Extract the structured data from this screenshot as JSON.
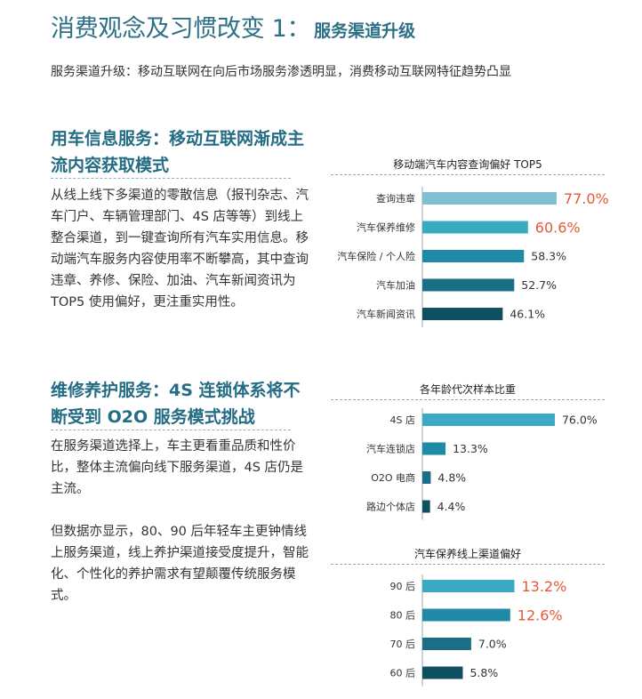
{
  "header": {
    "title": "消费观念及习惯改变 1：",
    "title_topic": "服务渠道升级",
    "subtitle": "服务渠道升级：移动互联网在向后市场服务渗透明显，消费移动互联网特征趋势凸显"
  },
  "section1": {
    "heading": "用车信息服务：移动互联网渐成主流内容获取模式",
    "paragraph": "从线上线下多渠道的零散信息（报刊杂志、汽车门户、车辆管理部门、4S 店等等）到线上整合渠道，到一键查询所有汽车实用信息。移动端汽车服务内容使用率不断攀高，其中查询违章、养修、保险、加油、汽车新闻资讯为 TOP5 使用偏好，更注重实用性。"
  },
  "section2": {
    "heading": "维修养护服务：4S 连锁体系将不断受到 O2O 服务模式挑战",
    "paragraph1": "在服务渠道选择上，车主更看重品质和性价比，整体主流偏向线下服务渠道，4S 店仍是主流。",
    "paragraph2": "但数据亦显示，80、90 后年轻车主更钟情线上服务渠道，线上养护渠道接受度提升，智能化、个性化的养护需求有望颠覆传统服务模式。"
  },
  "colors": {
    "title": "#2d6f86",
    "highlight": "#e8563a",
    "bar_palette": [
      "#7fbfcf",
      "#3aa9c2",
      "#1f8aa6",
      "#186f86",
      "#0e4f60"
    ]
  },
  "chart_data": [
    {
      "type": "bar",
      "orientation": "horizontal",
      "title": "移动端汽车内容查询偏好 TOP5",
      "categories": [
        "查询违章",
        "汽车保养维修",
        "汽车保险 / 个人险",
        "汽车加油",
        "汽车新闻资讯"
      ],
      "values": [
        77.0,
        60.6,
        58.3,
        52.7,
        46.1
      ],
      "value_labels": [
        "77.0%",
        "60.6%",
        "58.3%",
        "52.7%",
        "46.1%"
      ],
      "highlight_indices": [
        0,
        1
      ],
      "colors": [
        "#7fbfcf",
        "#3aa9c2",
        "#1f8aa6",
        "#186f86",
        "#0e4f60"
      ]
    },
    {
      "type": "bar",
      "orientation": "horizontal",
      "title": "各年龄代次样本比重",
      "categories": [
        "4S 店",
        "汽车连锁店",
        "O2O 电商",
        "路边个体店"
      ],
      "values": [
        76.0,
        13.3,
        4.8,
        4.4
      ],
      "value_labels": [
        "76.0%",
        "13.3%",
        "4.8%",
        "4.4%"
      ],
      "highlight_indices": [],
      "colors": [
        "#3aa9c2",
        "#1f8aa6",
        "#186f86",
        "#0e4f60"
      ]
    },
    {
      "type": "bar",
      "orientation": "horizontal",
      "title": "汽车保养线上渠道偏好",
      "categories": [
        "90 后",
        "80 后",
        "70 后",
        "60 后"
      ],
      "values": [
        13.2,
        12.6,
        7.0,
        5.8
      ],
      "value_labels": [
        "13.2%",
        "12.6%",
        "7.0%",
        "5.8%"
      ],
      "highlight_indices": [
        0,
        1
      ],
      "colors": [
        "#3aa9c2",
        "#1f8aa6",
        "#186f86",
        "#0e4f60"
      ]
    }
  ]
}
